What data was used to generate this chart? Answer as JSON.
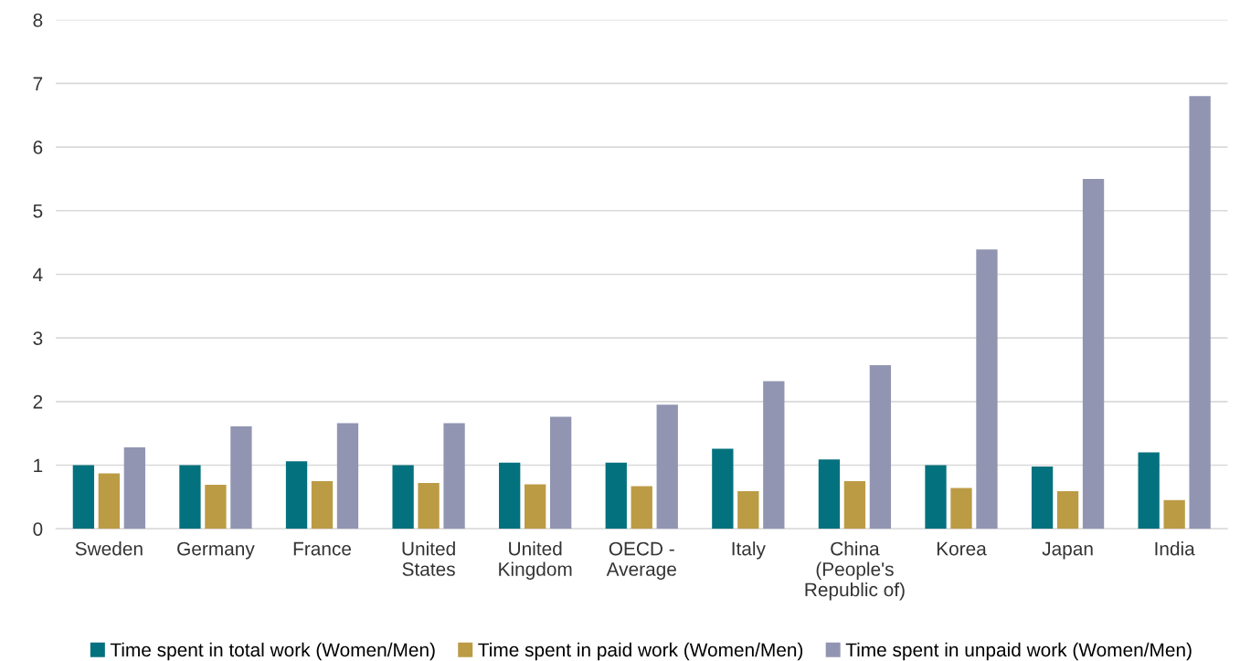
{
  "chart_data": {
    "type": "bar",
    "categories": [
      "Sweden",
      "Germany",
      "France",
      "United\nStates",
      "United\nKingdom",
      "OECD -\nAverage",
      "Italy",
      "China\n(People's\nRepublic of)",
      "Korea",
      "Japan",
      "India"
    ],
    "series": [
      {
        "name": "Time spent in total work (Women/Men)",
        "color": "#04717e",
        "values": [
          1.0,
          1.0,
          1.06,
          1.0,
          1.04,
          1.04,
          1.26,
          1.09,
          1.0,
          0.98,
          1.2
        ]
      },
      {
        "name": "Time spent in paid work (Women/Men)",
        "color": "#bc9b45",
        "values": [
          0.87,
          0.69,
          0.75,
          0.72,
          0.7,
          0.67,
          0.59,
          0.75,
          0.64,
          0.59,
          0.45
        ]
      },
      {
        "name": "Time spent in unpaid work (Women/Men)",
        "color": "#9195b2",
        "values": [
          1.28,
          1.61,
          1.66,
          1.66,
          1.76,
          1.95,
          2.32,
          2.57,
          4.39,
          5.5,
          6.8
        ]
      }
    ],
    "ylim": [
      0,
      8
    ],
    "yticks": [
      0,
      1,
      2,
      3,
      4,
      5,
      6,
      7,
      8
    ],
    "grid": "y",
    "legend": "bottom"
  }
}
